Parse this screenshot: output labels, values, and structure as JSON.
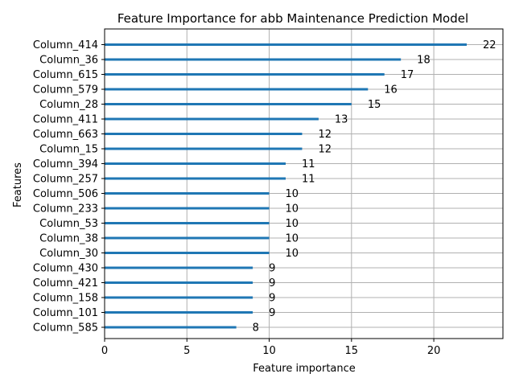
{
  "chart_data": {
    "type": "bar",
    "orientation": "horizontal",
    "title": "Feature Importance for abb Maintenance Prediction Model",
    "xlabel": "Feature importance",
    "ylabel": "Features",
    "xlim": [
      0,
      24.2
    ],
    "xticks": [
      0,
      5,
      10,
      15,
      20
    ],
    "grid": true,
    "bar_color": "#1f77b4",
    "categories": [
      "Column_414",
      "Column_36",
      "Column_615",
      "Column_579",
      "Column_28",
      "Column_411",
      "Column_663",
      "Column_15",
      "Column_394",
      "Column_257",
      "Column_506",
      "Column_233",
      "Column_53",
      "Column_38",
      "Column_30",
      "Column_430",
      "Column_421",
      "Column_158",
      "Column_101",
      "Column_585"
    ],
    "values": [
      22,
      18,
      17,
      16,
      15,
      13,
      12,
      12,
      11,
      11,
      10,
      10,
      10,
      10,
      10,
      9,
      9,
      9,
      9,
      8
    ]
  }
}
